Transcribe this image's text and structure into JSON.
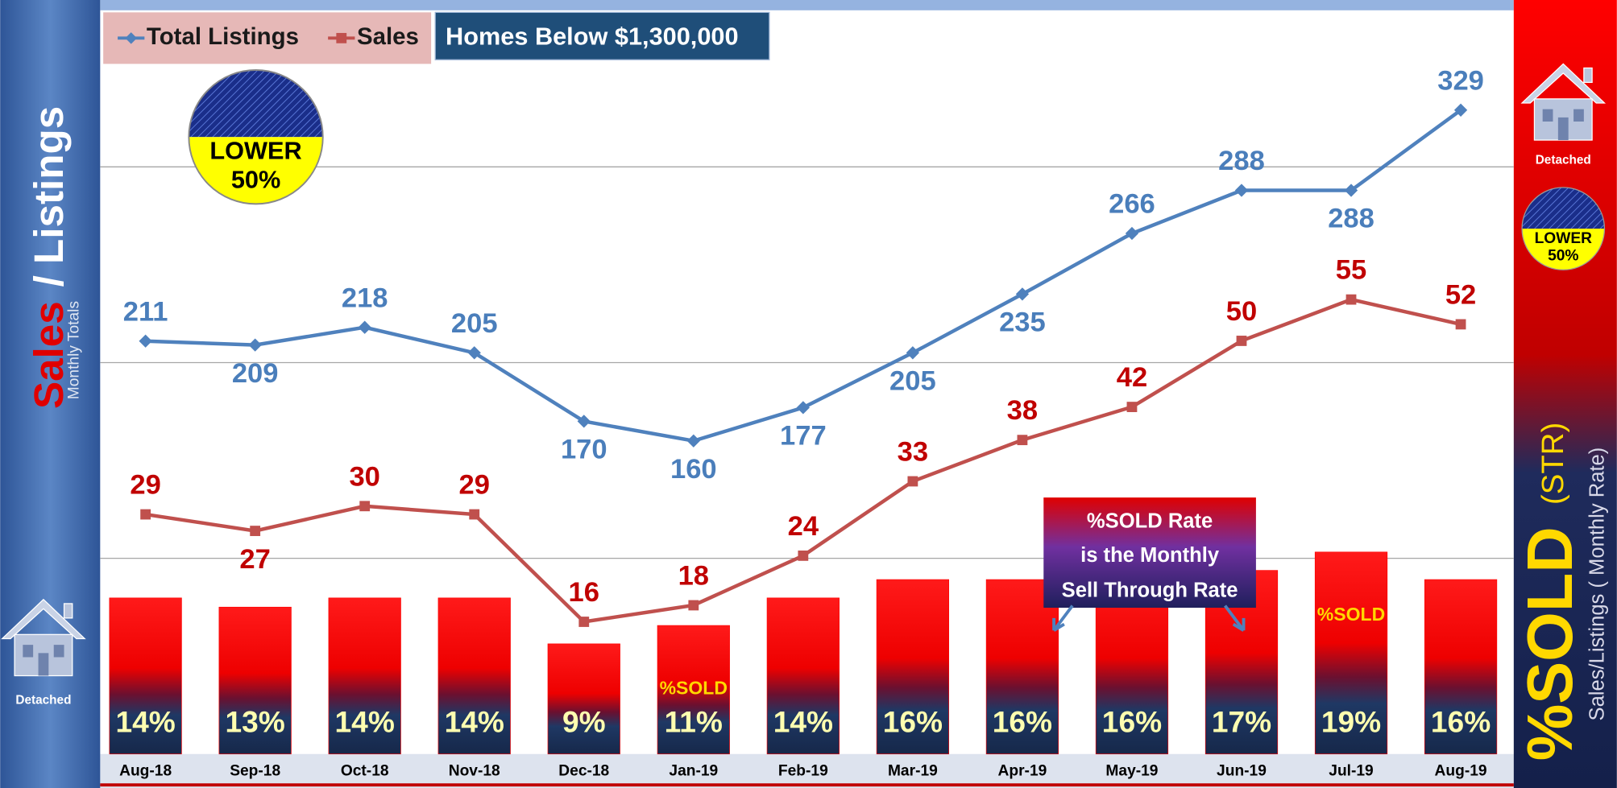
{
  "chart_data": {
    "type": "line",
    "title": "Homes Below $1,300,000",
    "categories": [
      "Aug-18",
      "Sep-18",
      "Oct-18",
      "Nov-18",
      "Dec-18",
      "Jan-19",
      "Feb-19",
      "Mar-19",
      "Apr-19",
      "May-19",
      "Jun-19",
      "Jul-19",
      "Aug-19"
    ],
    "series": [
      {
        "name": "Total Listings",
        "color": "#4f81bd",
        "values": [
          211,
          209,
          218,
          205,
          170,
          160,
          177,
          205,
          235,
          266,
          288,
          288,
          329
        ]
      },
      {
        "name": "Sales",
        "color": "#c0504d",
        "axis": "y2",
        "values": [
          29,
          27,
          30,
          29,
          16,
          18,
          24,
          33,
          38,
          42,
          50,
          55,
          52
        ]
      },
      {
        "name": "%SOLD",
        "type": "bar",
        "color": "#ff0000",
        "axis": "y3",
        "values": [
          14,
          13,
          14,
          14,
          9,
          11,
          14,
          16,
          16,
          16,
          17,
          19,
          16
        ],
        "value_labels": [
          "14%",
          "13%",
          "14%",
          "14%",
          "9%",
          "11%",
          "14%",
          "16%",
          "16%",
          "16%",
          "17%",
          "19%",
          "16%"
        ]
      }
    ],
    "ylim": [
      0,
      380
    ],
    "yticks": [
      100,
      200,
      300
    ],
    "grid": true,
    "y2lim": [
      0,
      90
    ],
    "y3lim": [
      -3,
      78
    ],
    "badge": [
      "LOWER",
      "50%"
    ],
    "bar_notes": [
      null,
      null,
      null,
      null,
      null,
      "%SOLD",
      null,
      null,
      null,
      null,
      null,
      "%SOLD",
      null
    ],
    "callout": [
      "%SOLD Rate",
      "is the Monthly",
      "Sell Through Rate"
    ],
    "left_panel": {
      "sales": "Sales",
      "listings": "/ Listings",
      "subtitle": "Monthly Totals",
      "house_label": "Detached"
    },
    "right_panel": {
      "str": "(STR)",
      "subtitle": "Sales/Listings ( Monthly Rate)",
      "house_label": "Detached"
    }
  }
}
